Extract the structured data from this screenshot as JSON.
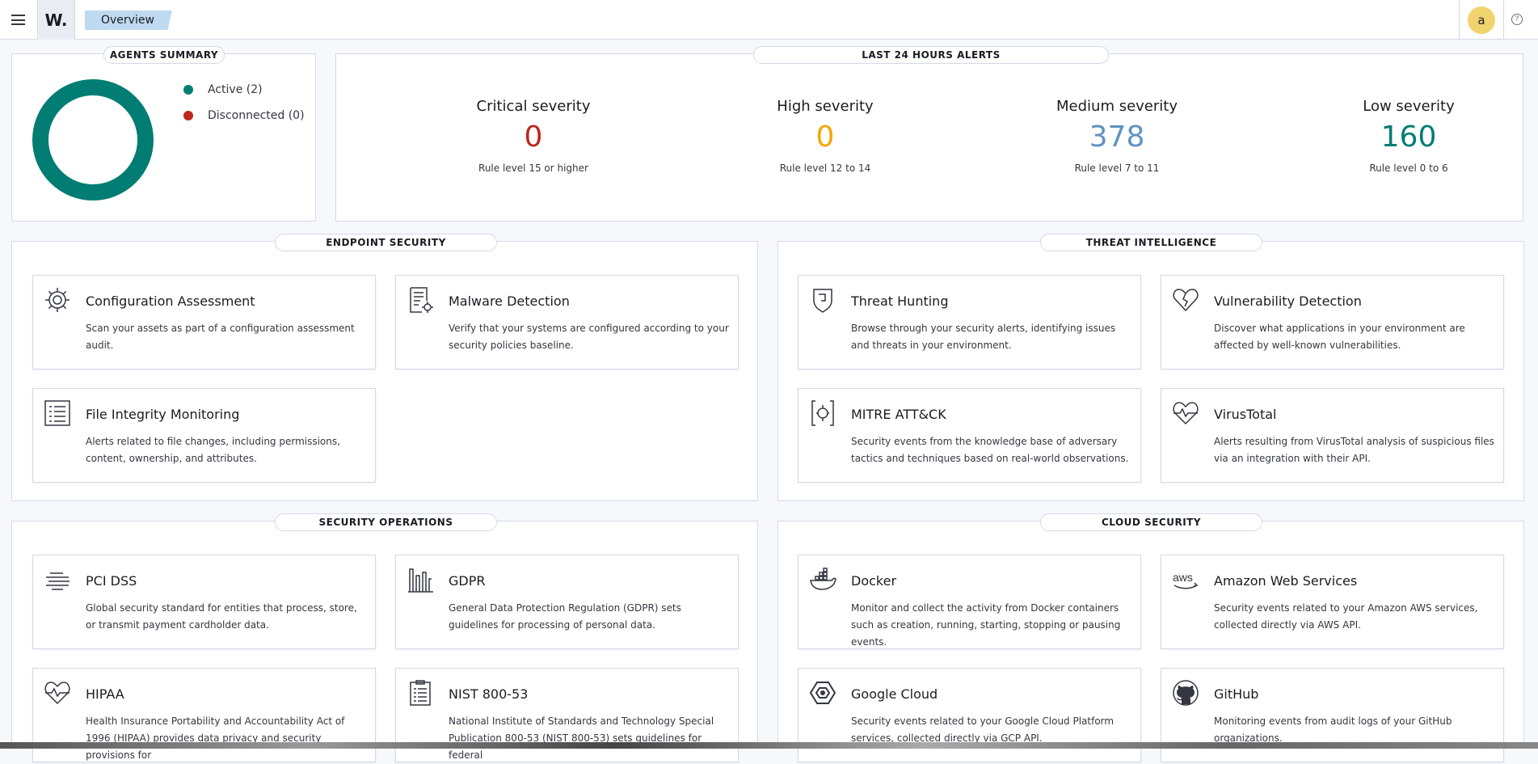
{
  "header": {
    "logo_text": "W.",
    "breadcrumb": "Overview",
    "avatar_initial": "a",
    "help_glyph": "?"
  },
  "agents_summary": {
    "title": "AGENTS SUMMARY",
    "legend": [
      {
        "label": "Active (2)",
        "color": "#017d73"
      },
      {
        "label": "Disconnected (0)",
        "color": "#bd271e"
      }
    ]
  },
  "alerts": {
    "title": "LAST 24 HOURS ALERTS",
    "items": [
      {
        "title": "Critical severity",
        "value": "0",
        "sub": "Rule level 15 or higher",
        "color": "#bd271e"
      },
      {
        "title": "High severity",
        "value": "0",
        "sub": "Rule level 12 to 14",
        "color": "#f5a700"
      },
      {
        "title": "Medium severity",
        "value": "378",
        "sub": "Rule level 7 to 11",
        "color": "#6092c0"
      },
      {
        "title": "Low severity",
        "value": "160",
        "sub": "Rule level 0 to 6",
        "color": "#017d73"
      }
    ]
  },
  "sections": {
    "endpoint": {
      "title": "ENDPOINT SECURITY",
      "cards": [
        {
          "title": "Configuration Assessment",
          "desc": "Scan your assets as part of a configuration assessment audit.",
          "icon": "gear-icon"
        },
        {
          "title": "Malware Detection",
          "desc": "Verify that your systems are configured according to your security policies baseline.",
          "icon": "document-gear-icon"
        },
        {
          "title": "File Integrity Monitoring",
          "desc": "Alerts related to file changes, including permissions, content, ownership, and attributes.",
          "icon": "list-document-icon"
        }
      ]
    },
    "threat": {
      "title": "THREAT INTELLIGENCE",
      "cards": [
        {
          "title": "Threat Hunting",
          "desc": "Browse through your security alerts, identifying issues and threats in your environment.",
          "icon": "shield-icon"
        },
        {
          "title": "Vulnerability Detection",
          "desc": "Discover what applications in your environment are affected by well-known vulnerabilities.",
          "icon": "broken-heart-icon"
        },
        {
          "title": "MITRE ATT&CK",
          "desc": "Security events from the knowledge base of adversary tactics and techniques based on real-world observations.",
          "icon": "target-brackets-icon"
        },
        {
          "title": "VirusTotal",
          "desc": "Alerts resulting from VirusTotal analysis of suspicious files via an integration with their API.",
          "icon": "heartbeat-icon"
        }
      ]
    },
    "secops": {
      "title": "SECURITY OPERATIONS",
      "cards": [
        {
          "title": "PCI DSS",
          "desc": "Global security standard for entities that process, store, or transmit payment cardholder data.",
          "icon": "lines-icon"
        },
        {
          "title": "GDPR",
          "desc": "General Data Protection Regulation (GDPR) sets guidelines for processing of personal data.",
          "icon": "bars-icon"
        },
        {
          "title": "HIPAA",
          "desc": "Health Insurance Portability and Accountability Act of 1996 (HIPAA) provides data privacy and security provisions for",
          "icon": "heartbeat-icon"
        },
        {
          "title": "NIST 800-53",
          "desc": "National Institute of Standards and Technology Special Publication 800-53 (NIST 800-53) sets guidelines for federal",
          "icon": "clipboard-icon"
        }
      ]
    },
    "cloud": {
      "title": "CLOUD SECURITY",
      "cards": [
        {
          "title": "Docker",
          "desc": "Monitor and collect the activity from Docker containers such as creation, running, starting, stopping or pausing events.",
          "icon": "docker-icon"
        },
        {
          "title": "Amazon Web Services",
          "desc": "Security events related to your Amazon AWS services, collected directly via AWS API.",
          "icon": "aws-icon"
        },
        {
          "title": "Google Cloud",
          "desc": "Security events related to your Google Cloud Platform services, collected directly via GCP API.",
          "icon": "google-cloud-icon"
        },
        {
          "title": "GitHub",
          "desc": "Monitoring events from audit logs of your GitHub organizations.",
          "icon": "github-icon"
        }
      ]
    }
  }
}
